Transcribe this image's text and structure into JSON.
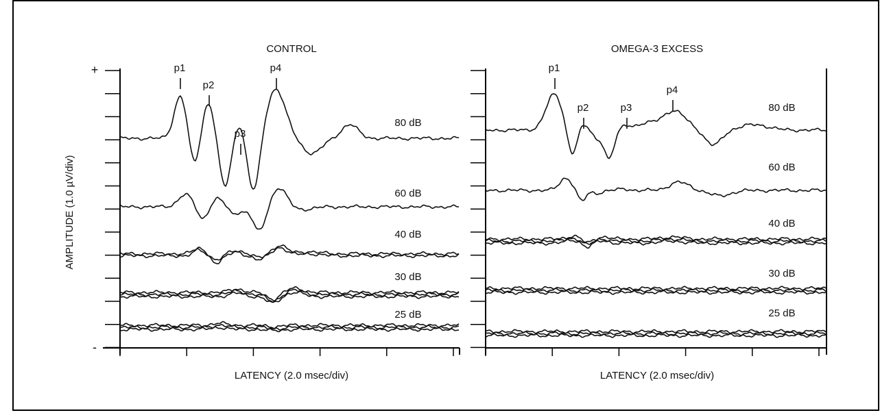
{
  "figure": {
    "y_axis_label": "AMPLITUDE (1.0 µV/div)",
    "y_plus": "+",
    "y_minus": "-",
    "panels": [
      {
        "title": "CONTROL",
        "x_axis_label": "LATENCY (2.0 msec/div)",
        "peaks": [
          "p1",
          "p2",
          "p3",
          "p4"
        ],
        "levels": [
          "80 dB",
          "60 dB",
          "40 dB",
          "30 dB",
          "25 dB"
        ]
      },
      {
        "title": "OMEGA-3 EXCESS",
        "x_axis_label": "LATENCY (2.0 msec/div)",
        "peaks": [
          "p1",
          "p2",
          "p3",
          "p4"
        ],
        "levels": [
          "80 dB",
          "60 dB",
          "40 dB",
          "30 dB",
          "25 dB"
        ]
      }
    ]
  }
}
